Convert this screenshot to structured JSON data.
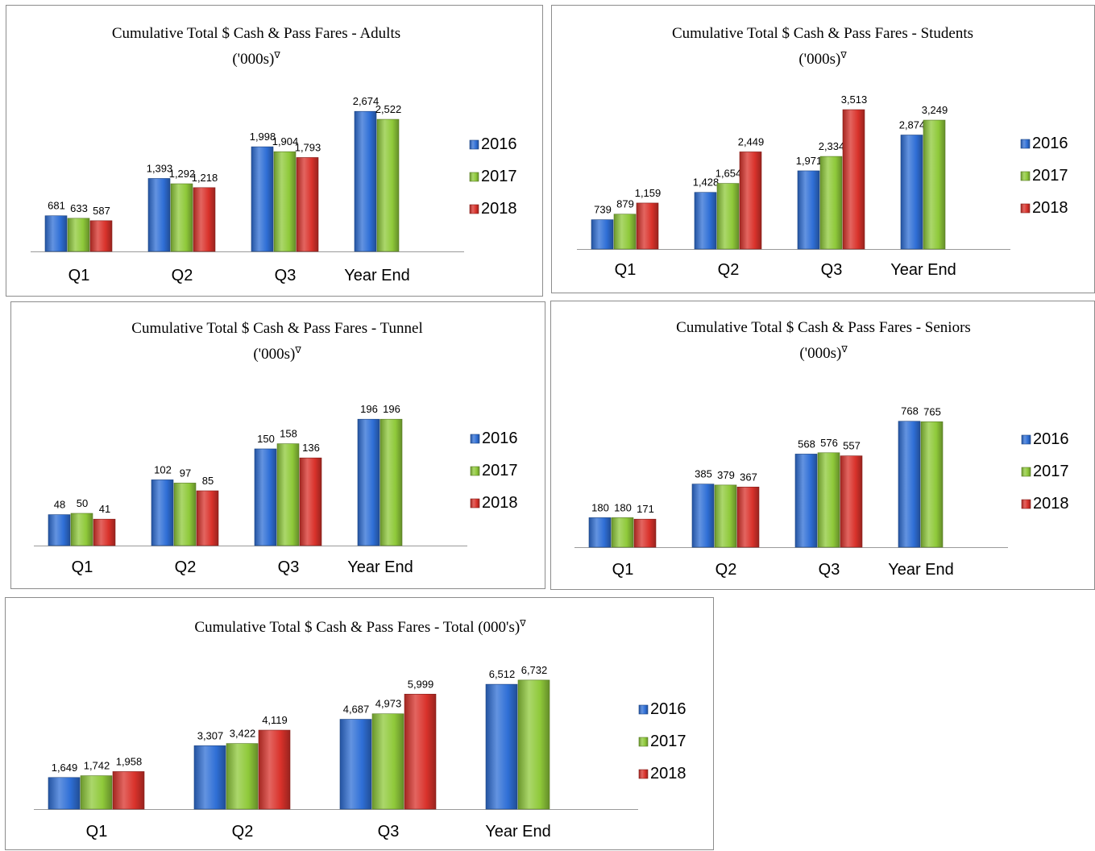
{
  "colors": {
    "2016": "#2f6fd6",
    "2017": "#8fc93a",
    "2018": "#d9322b"
  },
  "chart_data": [
    {
      "type": "bar",
      "title": "Cumulative  Total $ Cash & Pass Fares - Adults",
      "subtitle": "('000s)",
      "subtitle_mark": "∇",
      "categories": [
        "Q1",
        "Q2",
        "Q3",
        "Year End"
      ],
      "series": [
        {
          "name": "2016",
          "values": [
            681,
            1393,
            1998,
            2674
          ],
          "labels": [
            "681",
            "1,393",
            "1,998",
            "2,674"
          ]
        },
        {
          "name": "2017",
          "values": [
            633,
            1292,
            1904,
            2522
          ],
          "labels": [
            "633",
            "1,292",
            "1,904",
            "2,522"
          ]
        },
        {
          "name": "2018",
          "values": [
            587,
            1218,
            1793,
            null
          ],
          "labels": [
            "587",
            "1,218",
            "1,793",
            ""
          ]
        }
      ],
      "ylim": [
        0,
        3000
      ],
      "legend": "right",
      "grid": false
    },
    {
      "type": "bar",
      "title": "Cumulative Total $ Cash & Pass Fares - Students",
      "subtitle": "('000s)",
      "subtitle_mark": "∇",
      "categories": [
        "Q1",
        "Q2",
        "Q3",
        "Year End"
      ],
      "series": [
        {
          "name": "2016",
          "values": [
            739,
            1428,
            1971,
            2874
          ],
          "labels": [
            "739",
            "1,428",
            "1,971",
            "2,874"
          ]
        },
        {
          "name": "2017",
          "values": [
            879,
            1654,
            2334,
            3249
          ],
          "labels": [
            "879",
            "1,654",
            "2,334",
            "3,249"
          ]
        },
        {
          "name": "2018",
          "values": [
            1159,
            2449,
            3513,
            null
          ],
          "labels": [
            "1,159",
            "2,449",
            "3,513",
            ""
          ]
        }
      ],
      "ylim": [
        0,
        3900
      ],
      "legend": "right",
      "grid": false
    },
    {
      "type": "bar",
      "title": "Cumulative Total $ Cash & Pass Fares - Tunnel",
      "subtitle": "('000s)",
      "subtitle_mark": "∇",
      "categories": [
        "Q1",
        "Q2",
        "Q3",
        "Year End"
      ],
      "series": [
        {
          "name": "2016",
          "values": [
            48,
            102,
            150,
            196
          ],
          "labels": [
            "48",
            "102",
            "150",
            "196"
          ]
        },
        {
          "name": "2017",
          "values": [
            50,
            97,
            158,
            196
          ],
          "labels": [
            "50",
            "97",
            "158",
            "196"
          ]
        },
        {
          "name": "2018",
          "values": [
            41,
            85,
            136,
            null
          ],
          "labels": [
            "41",
            "85",
            "136",
            ""
          ]
        }
      ],
      "ylim": [
        0,
        220
      ],
      "legend": "right",
      "grid": false
    },
    {
      "type": "bar",
      "title": "Cumulative Total $ Cash & Pass Fares - Seniors",
      "subtitle": "('000s)",
      "subtitle_mark": "∇",
      "categories": [
        "Q1",
        "Q2",
        "Q3",
        "Year End"
      ],
      "series": [
        {
          "name": "2016",
          "values": [
            180,
            385,
            568,
            768
          ],
          "labels": [
            "180",
            "385",
            "568",
            "768"
          ]
        },
        {
          "name": "2017",
          "values": [
            180,
            379,
            576,
            765
          ],
          "labels": [
            "180",
            "379",
            "576",
            "765"
          ]
        },
        {
          "name": "2018",
          "values": [
            171,
            367,
            557,
            null
          ],
          "labels": [
            "171",
            "367",
            "557",
            ""
          ]
        }
      ],
      "ylim": [
        0,
        860
      ],
      "legend": "right",
      "grid": false
    },
    {
      "type": "bar",
      "title": "Cumulative Total $ Cash & Pass Fares - Total (000's)",
      "subtitle": "",
      "subtitle_mark": "∇",
      "categories": [
        "Q1",
        "Q2",
        "Q3",
        "Year End"
      ],
      "series": [
        {
          "name": "2016",
          "values": [
            1649,
            3307,
            4687,
            6512
          ],
          "labels": [
            "1,649",
            "3,307",
            "4,687",
            "6,512"
          ]
        },
        {
          "name": "2017",
          "values": [
            1742,
            3422,
            4973,
            6732
          ],
          "labels": [
            "1,742",
            "3,422",
            "4,973",
            "6,732"
          ]
        },
        {
          "name": "2018",
          "values": [
            1958,
            4119,
            5999,
            null
          ],
          "labels": [
            "1,958",
            "4,119",
            "5,999",
            ""
          ]
        }
      ],
      "ylim": [
        0,
        7400
      ],
      "legend": "right",
      "grid": false
    }
  ]
}
